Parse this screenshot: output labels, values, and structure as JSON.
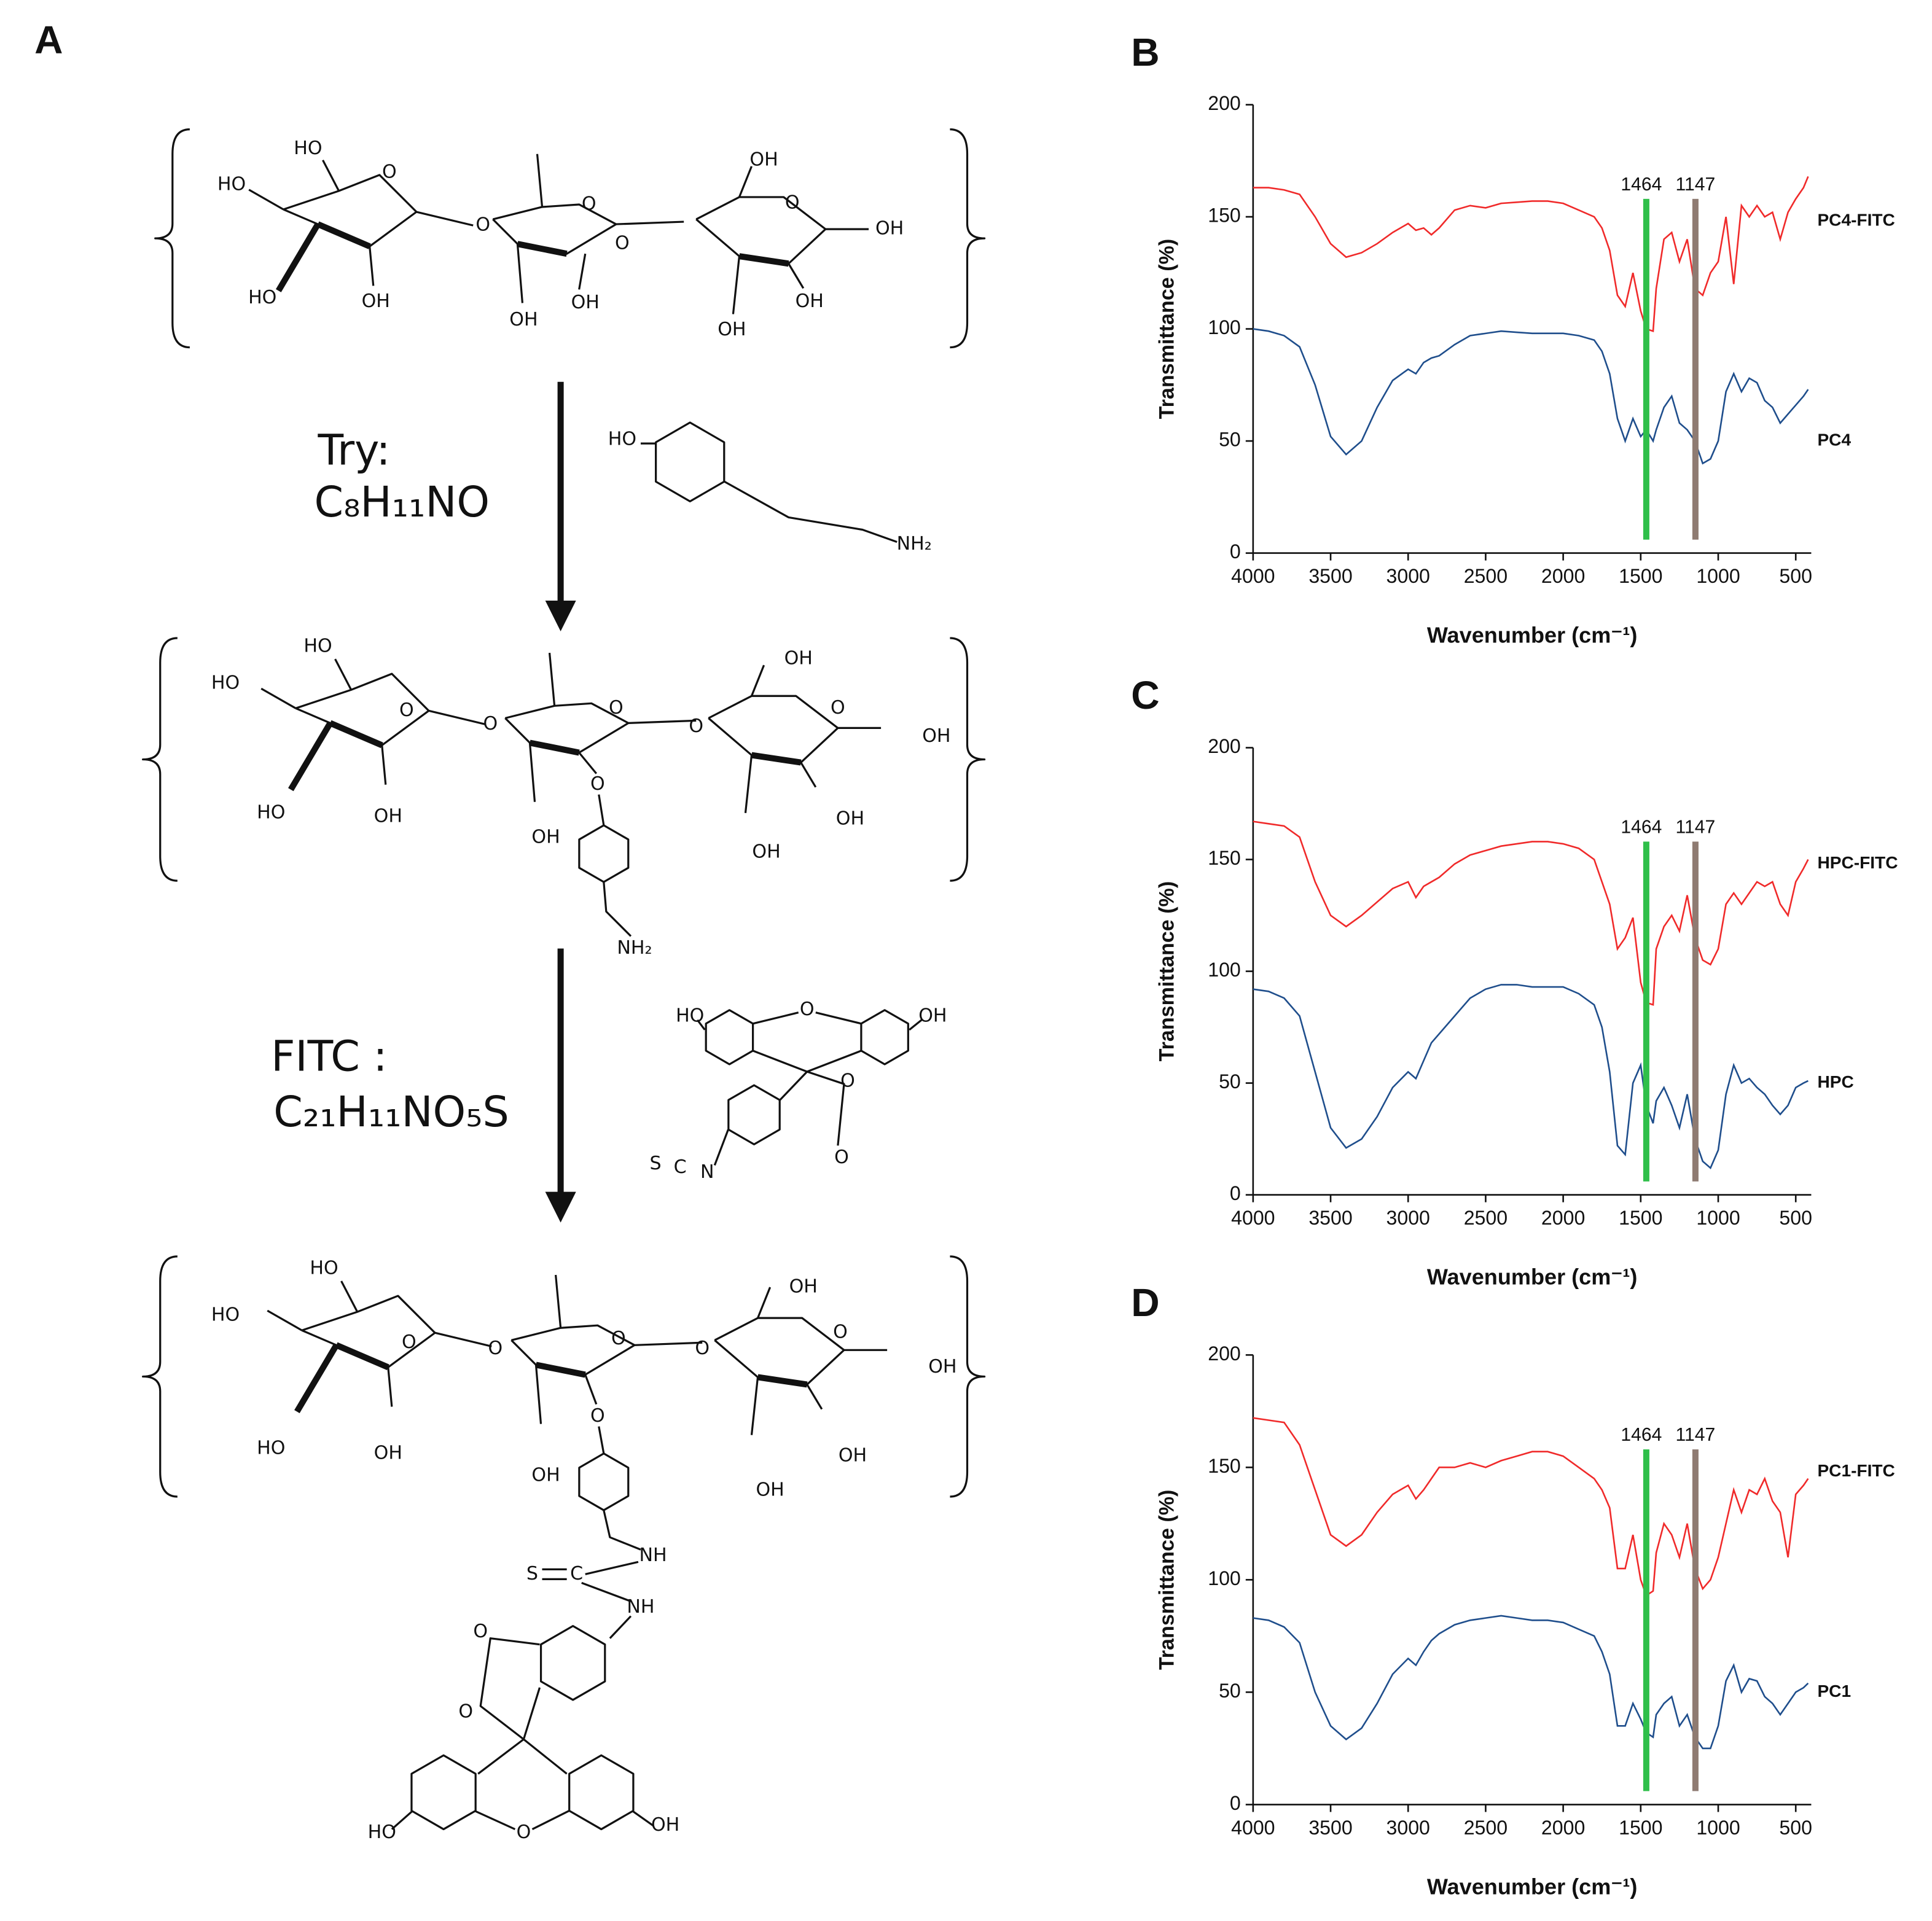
{
  "scheme": {
    "label": "A",
    "steps": [
      {
        "name": "Try:",
        "formula": "C₈H₁₁NO",
        "atoms": [
          "HO",
          "NH₂"
        ]
      },
      {
        "name": "FITC :",
        "formula": "C₂₁H₁₁NO₅S",
        "atoms": [
          "HO",
          "O",
          "OH",
          "O",
          "O",
          "S",
          "C",
          "N"
        ]
      }
    ],
    "structures": [
      {
        "atoms": [
          "HO",
          "HO",
          "O",
          "HO",
          "OH",
          "O",
          "O",
          "OH",
          "OH",
          "O",
          "OH",
          "O",
          "OH",
          "OH",
          "OH"
        ]
      },
      {
        "atoms": [
          "HO",
          "HO",
          "O",
          "HO",
          "OH",
          "O",
          "O",
          "OH",
          "O",
          "O",
          "OH",
          "O",
          "OH",
          "OH",
          "OH",
          "NH₂"
        ]
      },
      {
        "atoms": [
          "HO",
          "HO",
          "O",
          "HO",
          "OH",
          "O",
          "O",
          "OH",
          "O",
          "O",
          "OH",
          "O",
          "OH",
          "OH",
          "OH",
          "NH",
          "S",
          "C",
          "NH",
          "O",
          "O",
          "O",
          "HO",
          "OH"
        ]
      }
    ]
  },
  "chart_data": [
    {
      "type": "line",
      "label": "B",
      "xlabel": "Wavenumber (cm⁻¹)",
      "ylabel": "Transmittance (%)",
      "x": [
        4000,
        3900,
        3800,
        3700,
        3600,
        3500,
        3400,
        3300,
        3200,
        3100,
        3000,
        2950,
        2900,
        2850,
        2800,
        2700,
        2600,
        2500,
        2400,
        2300,
        2200,
        2100,
        2000,
        1900,
        1800,
        1750,
        1700,
        1650,
        1600,
        1550,
        1500,
        1464,
        1420,
        1400,
        1350,
        1300,
        1250,
        1200,
        1150,
        1100,
        1050,
        1000,
        950,
        900,
        850,
        800,
        750,
        700,
        650,
        600,
        550,
        500,
        450,
        420
      ],
      "series": [
        {
          "name": "PC4-FITC",
          "color": "#f02a2a",
          "values": [
            163,
            163,
            162,
            160,
            150,
            138,
            132,
            134,
            138,
            143,
            147,
            144,
            145,
            142,
            145,
            153,
            155,
            154,
            156,
            156.5,
            157,
            157,
            156,
            153,
            150,
            145,
            135,
            115,
            110,
            125,
            108,
            100,
            99,
            118,
            140,
            143,
            130,
            140,
            118,
            115,
            125,
            130,
            150,
            120,
            155,
            150,
            155,
            150,
            152,
            140,
            152,
            158,
            163,
            168
          ]
        },
        {
          "name": "PC4",
          "color": "#1f4e8c",
          "values": [
            100,
            99,
            97,
            92,
            75,
            52,
            44,
            50,
            65,
            77,
            82,
            80,
            85,
            87,
            88,
            93,
            97,
            98,
            99,
            98.5,
            98,
            98,
            98,
            97,
            95,
            90,
            80,
            60,
            50,
            60,
            52,
            55,
            50,
            55,
            65,
            70,
            58,
            55,
            50,
            40,
            42,
            50,
            72,
            80,
            72,
            78,
            76,
            68,
            65,
            58,
            62,
            66,
            70,
            73
          ]
        }
      ],
      "xlim": [
        4000,
        400
      ],
      "ylim": [
        0,
        200
      ],
      "xticks": [
        4000,
        3500,
        3000,
        2500,
        2000,
        1500,
        1000,
        500
      ],
      "yticks": [
        0,
        50,
        100,
        150,
        200
      ],
      "annotations": [
        {
          "x": 1464,
          "label": "1464",
          "color": "#2fbf4a"
        },
        {
          "x": 1147,
          "label": "1147",
          "color": "#8f7b72"
        }
      ]
    },
    {
      "type": "line",
      "label": "C",
      "xlabel": "Wavenumber (cm⁻¹)",
      "ylabel": "Transmittance (%)",
      "x": [
        4000,
        3900,
        3800,
        3700,
        3600,
        3500,
        3400,
        3300,
        3200,
        3100,
        3000,
        2950,
        2900,
        2850,
        2800,
        2700,
        2600,
        2500,
        2400,
        2300,
        2200,
        2100,
        2000,
        1900,
        1800,
        1750,
        1700,
        1650,
        1600,
        1550,
        1500,
        1464,
        1420,
        1400,
        1350,
        1300,
        1250,
        1200,
        1150,
        1100,
        1050,
        1000,
        950,
        900,
        850,
        800,
        750,
        700,
        650,
        600,
        550,
        500,
        450,
        420
      ],
      "series": [
        {
          "name": "HPC-FITC",
          "color": "#f02a2a",
          "values": [
            167,
            166,
            165,
            160,
            140,
            125,
            120,
            125,
            131,
            137,
            140,
            133,
            138,
            140,
            142,
            148,
            152,
            154,
            156,
            157,
            158,
            158,
            157,
            155,
            150,
            140,
            130,
            110,
            115,
            124,
            95,
            86,
            85,
            110,
            120,
            125,
            118,
            134,
            115,
            105,
            103,
            110,
            130,
            135,
            130,
            135,
            140,
            138,
            140,
            130,
            125,
            140,
            146,
            150
          ]
        },
        {
          "name": "HPC",
          "color": "#1f4e8c",
          "values": [
            92,
            91,
            88,
            80,
            55,
            30,
            21,
            25,
            35,
            48,
            55,
            52,
            60,
            68,
            72,
            80,
            88,
            92,
            94,
            94,
            93,
            93,
            93,
            90,
            85,
            75,
            55,
            22,
            18,
            50,
            58,
            40,
            32,
            42,
            48,
            40,
            30,
            45,
            25,
            15,
            12,
            20,
            45,
            58,
            50,
            52,
            48,
            45,
            40,
            36,
            40,
            48,
            50,
            51
          ]
        }
      ],
      "xlim": [
        4000,
        400
      ],
      "ylim": [
        0,
        200
      ],
      "xticks": [
        4000,
        3500,
        3000,
        2500,
        2000,
        1500,
        1000,
        500
      ],
      "yticks": [
        0,
        50,
        100,
        150,
        200
      ],
      "annotations": [
        {
          "x": 1464,
          "label": "1464",
          "color": "#2fbf4a"
        },
        {
          "x": 1147,
          "label": "1147",
          "color": "#8f7b72"
        }
      ]
    },
    {
      "type": "line",
      "label": "D",
      "xlabel": "Wavenumber (cm⁻¹)",
      "ylabel": "Transmittance (%)",
      "x": [
        4000,
        3900,
        3800,
        3700,
        3600,
        3500,
        3400,
        3300,
        3200,
        3100,
        3000,
        2950,
        2900,
        2850,
        2800,
        2700,
        2600,
        2500,
        2400,
        2300,
        2200,
        2100,
        2000,
        1900,
        1800,
        1750,
        1700,
        1650,
        1600,
        1550,
        1500,
        1464,
        1420,
        1400,
        1350,
        1300,
        1250,
        1200,
        1150,
        1100,
        1050,
        1000,
        950,
        900,
        850,
        800,
        750,
        700,
        650,
        600,
        550,
        500,
        450,
        420
      ],
      "series": [
        {
          "name": "PC1-FITC",
          "color": "#f02a2a",
          "values": [
            172,
            171,
            170,
            160,
            140,
            120,
            115,
            120,
            130,
            138,
            142,
            136,
            140,
            145,
            150,
            150,
            152,
            150,
            153,
            155,
            157,
            157,
            155,
            150,
            145,
            140,
            132,
            105,
            105,
            120,
            100,
            93,
            95,
            112,
            125,
            120,
            110,
            125,
            105,
            96,
            100,
            110,
            125,
            140,
            130,
            140,
            138,
            145,
            135,
            130,
            110,
            138,
            142,
            145
          ]
        },
        {
          "name": "PC1",
          "color": "#1f4e8c",
          "values": [
            83,
            82,
            79,
            72,
            50,
            35,
            29,
            34,
            45,
            58,
            65,
            62,
            68,
            73,
            76,
            80,
            82,
            83,
            84,
            83,
            82,
            82,
            81,
            78,
            75,
            68,
            58,
            35,
            35,
            45,
            38,
            32,
            30,
            40,
            45,
            48,
            35,
            40,
            30,
            25,
            25,
            35,
            55,
            62,
            50,
            56,
            55,
            48,
            45,
            40,
            45,
            50,
            52,
            54
          ]
        }
      ],
      "xlim": [
        4000,
        400
      ],
      "ylim": [
        0,
        200
      ],
      "xticks": [
        4000,
        3500,
        3000,
        2500,
        2000,
        1500,
        1000,
        500
      ],
      "yticks": [
        0,
        50,
        100,
        150,
        200
      ],
      "annotations": [
        {
          "x": 1464,
          "label": "1464",
          "color": "#2fbf4a"
        },
        {
          "x": 1147,
          "label": "1147",
          "color": "#8f7b72"
        }
      ]
    }
  ]
}
